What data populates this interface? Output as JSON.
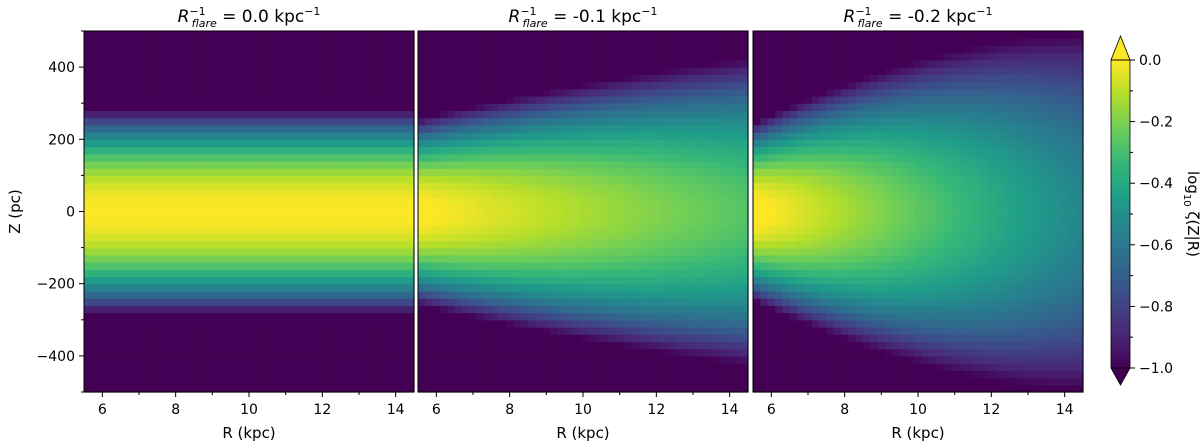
{
  "chart_data": [
    {
      "type": "heatmap",
      "title_symbol": "R",
      "title_sup": "−1",
      "title_sub": "flare",
      "title_value": " = 0.0 kpc",
      "title_unit_sup": "−1",
      "flare_inverse_radius": 0.0,
      "xlabel": "R (kpc)",
      "ylabel": "Z (pc)",
      "xlim": [
        5.5,
        14.5
      ],
      "ylim": [
        -500,
        500
      ],
      "xticks": [
        6,
        8,
        10,
        12,
        14
      ],
      "yticks": [
        400,
        200,
        0,
        -200,
        -400
      ],
      "ytick_labels": [
        "400",
        "200",
        "0",
        "−200",
        "−400"
      ],
      "scale_height_pc_at_R0": 200,
      "grid_step_R_kpc": 0.2,
      "grid_step_Z_pc": 20
    },
    {
      "type": "heatmap",
      "title_symbol": "R",
      "title_sup": "−1",
      "title_sub": "flare",
      "title_value": " = -0.1 kpc",
      "title_unit_sup": "−1",
      "flare_inverse_radius": -0.1,
      "xlabel": "R (kpc)",
      "xlim": [
        5.5,
        14.5
      ],
      "ylim": [
        -500,
        500
      ],
      "xticks": [
        6,
        8,
        10,
        12,
        14
      ],
      "grid_step_R_kpc": 0.2,
      "grid_step_Z_pc": 20
    },
    {
      "type": "heatmap",
      "title_symbol": "R",
      "title_sup": "−1",
      "title_sub": "flare",
      "title_value": " = -0.2 kpc",
      "title_unit_sup": "−1",
      "flare_inverse_radius": -0.2,
      "xlabel": "R (kpc)",
      "xlim": [
        5.5,
        14.5
      ],
      "ylim": [
        -500,
        500
      ],
      "xticks": [
        6,
        8,
        10,
        12,
        14
      ],
      "grid_step_R_kpc": 0.2,
      "grid_step_Z_pc": 20
    }
  ],
  "colorbar": {
    "label_prefix": "log",
    "label_sub": "10",
    "label_rest": " ζ(Z|R)",
    "range": [
      -1.0,
      0.0
    ],
    "ticks": [
      0.0,
      -0.2,
      -0.4,
      -0.6,
      -0.8,
      -1.0
    ],
    "tick_labels": [
      "0.0",
      "−0.2",
      "−0.4",
      "−0.6",
      "−0.8",
      "−1.0"
    ],
    "colormap": "viridis",
    "extend": "both"
  },
  "colors": {
    "viridis_stops": [
      "#440154",
      "#482878",
      "#3e4989",
      "#31688e",
      "#26828e",
      "#1f9e89",
      "#35b779",
      "#6ece58",
      "#b5de2b",
      "#fde725"
    ]
  }
}
